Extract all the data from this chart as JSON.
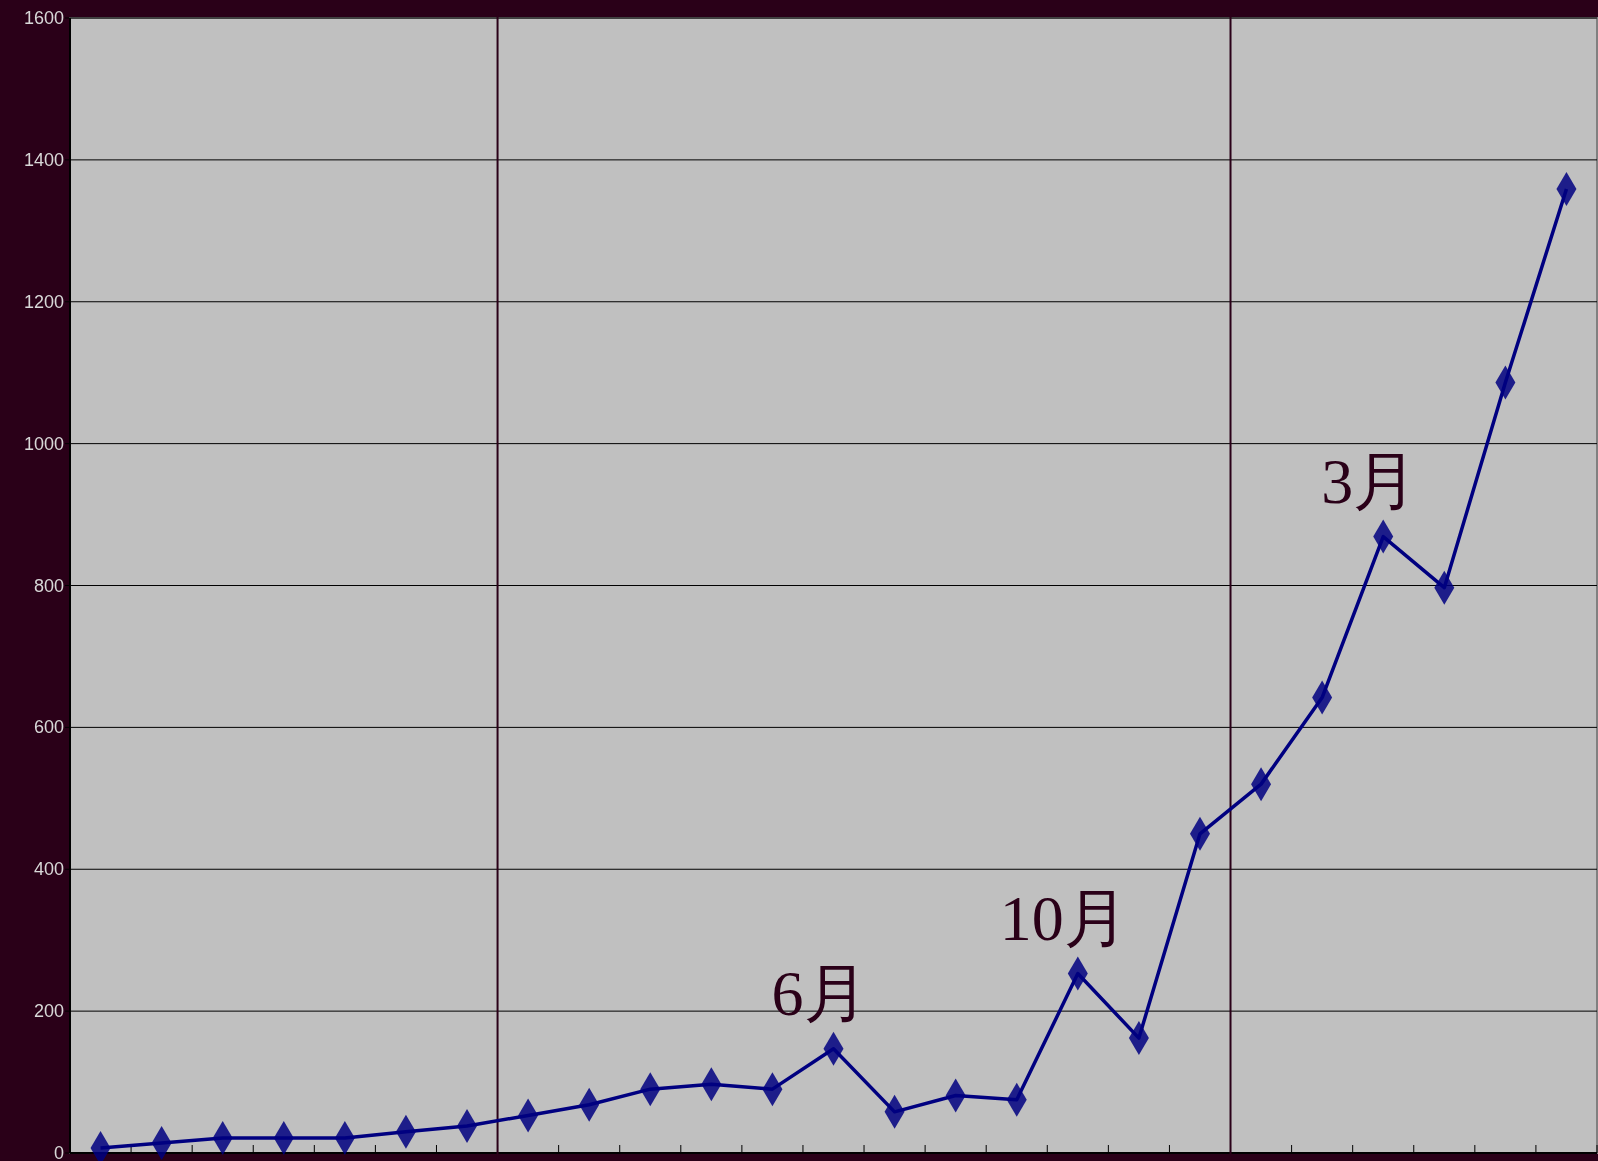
{
  "chart_data": {
    "type": "line",
    "categories": [
      null,
      null,
      null,
      null,
      null,
      null,
      null,
      null,
      null,
      null,
      null,
      null,
      null,
      null,
      null,
      null,
      null,
      null,
      null,
      null,
      null,
      null,
      null,
      null,
      null
    ],
    "series": [
      {
        "color": "#000080",
        "values": [
          7,
          14,
          21,
          21,
          21,
          30,
          38,
          53,
          68,
          90,
          97,
          90,
          147,
          58,
          81,
          75,
          253,
          162,
          450,
          520,
          642,
          869,
          797,
          1086,
          1359
        ]
      }
    ],
    "ylim": [
      0,
      1600
    ],
    "yticks": [
      0,
      200,
      400,
      600,
      800,
      1000,
      1200,
      1400,
      1600
    ],
    "tick_labels": "y",
    "grid": "y",
    "marker": "diamond",
    "line_style": "solid",
    "annotations": [
      {
        "text": "6月",
        "y": 147
      },
      {
        "text": "10月",
        "y": 253
      },
      {
        "text": "3月",
        "y": 869
      }
    ]
  }
}
